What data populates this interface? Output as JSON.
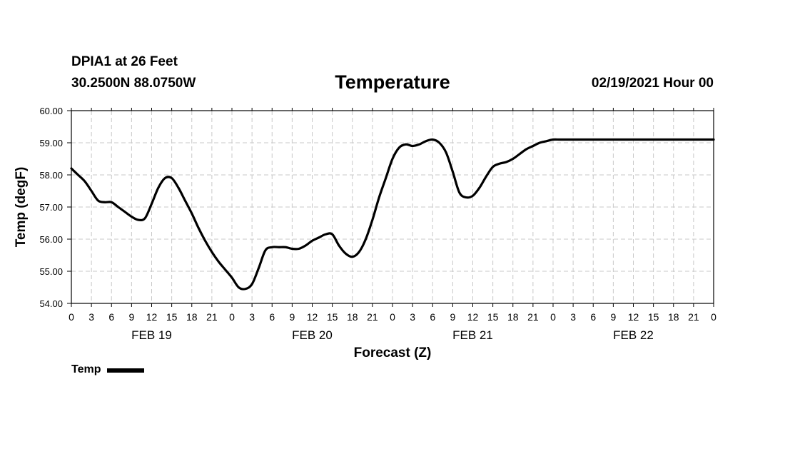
{
  "header": {
    "station": "DPIA1 at 26 Feet",
    "coords": "30.2500N 88.0750W",
    "title": "Temperature",
    "datetime": "02/19/2021 Hour 00"
  },
  "legend": {
    "label": "Temp",
    "color": "#000000"
  },
  "chart_data": {
    "type": "line",
    "title": "Temperature",
    "xlabel": "Forecast (Z)",
    "ylabel": "Temp (degF)",
    "ylim": [
      54.0,
      60.0
    ],
    "yticks": [
      "54.00",
      "55.00",
      "56.00",
      "57.00",
      "58.00",
      "59.00",
      "60.00"
    ],
    "xlim_hours": [
      0,
      96
    ],
    "xtick_labels": [
      "0",
      "3",
      "6",
      "9",
      "12",
      "15",
      "18",
      "21",
      "0",
      "3",
      "6",
      "9",
      "12",
      "15",
      "18",
      "21",
      "0",
      "3",
      "6",
      "9",
      "12",
      "15",
      "18",
      "21",
      "0",
      "3",
      "6",
      "9",
      "12",
      "15",
      "18",
      "21",
      "0"
    ],
    "date_labels": [
      {
        "label": "FEB 19",
        "hour": 12
      },
      {
        "label": "FEB 20",
        "hour": 36
      },
      {
        "label": "FEB 21",
        "hour": 60
      },
      {
        "label": "FEB 22",
        "hour": 84
      }
    ],
    "grid": true,
    "legend_position": "bottom-left",
    "series": [
      {
        "name": "Temp",
        "color": "#000000",
        "x": [
          0,
          1,
          2,
          3,
          4,
          5,
          6,
          7,
          8,
          9,
          10,
          11,
          12,
          13,
          14,
          15,
          16,
          17,
          18,
          19,
          20,
          21,
          22,
          23,
          24,
          25,
          26,
          27,
          28,
          29,
          30,
          31,
          32,
          33,
          34,
          35,
          36,
          37,
          38,
          39,
          40,
          41,
          42,
          43,
          44,
          45,
          46,
          47,
          48,
          49,
          50,
          51,
          52,
          53,
          54,
          55,
          56,
          57,
          58,
          59,
          60,
          61,
          62,
          63,
          64,
          65,
          66,
          67,
          68,
          69,
          70,
          71,
          72,
          73,
          74,
          75,
          76,
          77,
          78,
          79,
          80,
          81,
          82,
          83,
          84,
          85,
          86,
          87,
          88,
          89,
          90,
          91,
          92,
          93,
          94,
          95,
          96
        ],
        "y": [
          58.2,
          58.0,
          57.8,
          57.5,
          57.2,
          57.15,
          57.15,
          57.0,
          56.85,
          56.7,
          56.6,
          56.65,
          57.1,
          57.6,
          57.9,
          57.9,
          57.6,
          57.2,
          56.8,
          56.35,
          55.95,
          55.6,
          55.3,
          55.05,
          54.8,
          54.5,
          54.45,
          54.6,
          55.1,
          55.65,
          55.75,
          55.75,
          55.75,
          55.7,
          55.7,
          55.8,
          55.95,
          56.05,
          56.15,
          56.15,
          55.8,
          55.55,
          55.45,
          55.6,
          56.0,
          56.6,
          57.3,
          57.9,
          58.5,
          58.85,
          58.95,
          58.9,
          58.95,
          59.05,
          59.1,
          59.0,
          58.7,
          58.1,
          57.45,
          57.3,
          57.35,
          57.6,
          57.95,
          58.25,
          58.35,
          58.4,
          58.5,
          58.65,
          58.8,
          58.9,
          59.0,
          59.05,
          59.1,
          59.1,
          59.1,
          59.1,
          59.1,
          59.1,
          59.1,
          59.1,
          59.1,
          59.1,
          59.1,
          59.1,
          59.1,
          59.1,
          59.1,
          59.1,
          59.1,
          59.1,
          59.1,
          59.1,
          59.1,
          59.1,
          59.1,
          59.1,
          59.1
        ]
      }
    ]
  }
}
